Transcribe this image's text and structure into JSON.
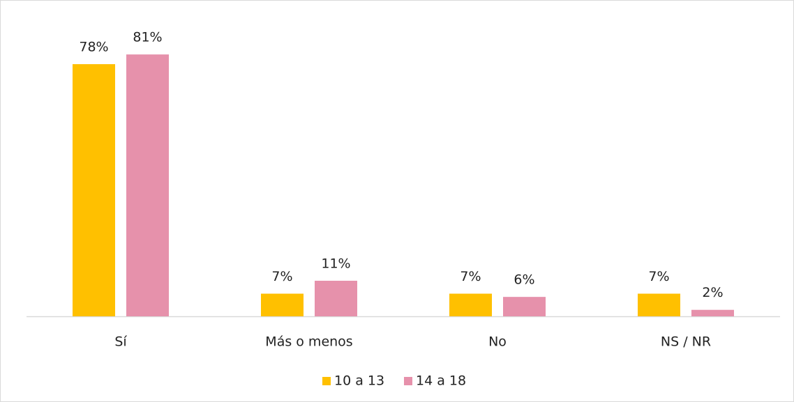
{
  "chart_data": {
    "type": "bar",
    "categories": [
      "Sí",
      "Más o menos",
      "No",
      "NS / NR"
    ],
    "series": [
      {
        "name": "10 a 13",
        "color": "#ffc000",
        "values": [
          78,
          7,
          7,
          7
        ],
        "value_labels": [
          "78%",
          "7%",
          "7%",
          "7%"
        ]
      },
      {
        "name": "14 a 18",
        "color": "#e691ab",
        "values": [
          81,
          11,
          6,
          2
        ],
        "value_labels": [
          "81%",
          "11%",
          "6%",
          "2%"
        ]
      }
    ],
    "legend": "bottom"
  }
}
